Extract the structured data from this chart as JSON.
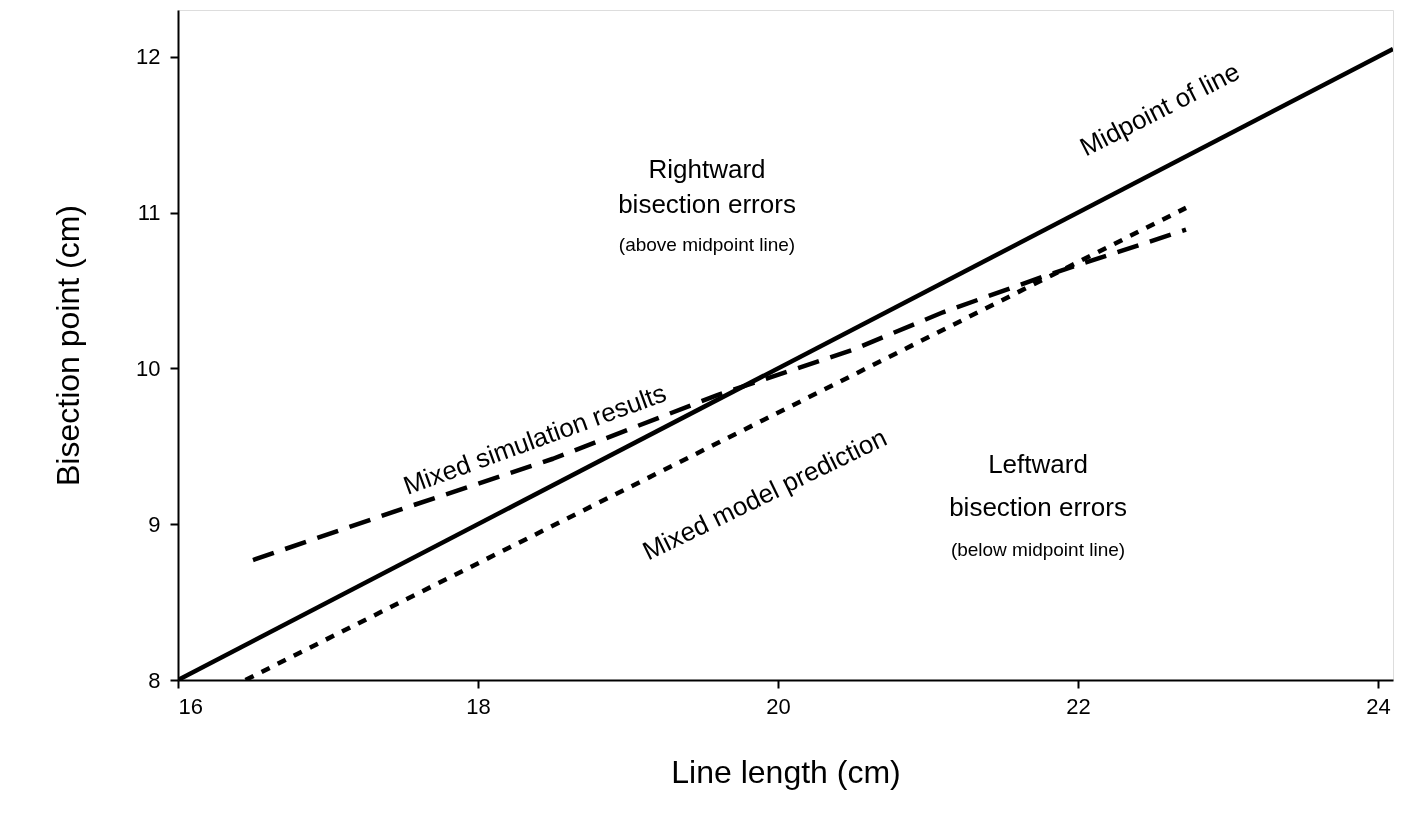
{
  "chart_data": {
    "type": "line",
    "xlabel": "Line length (cm)",
    "ylabel": "Bisection point (cm)",
    "xlim": [
      16,
      24.1
    ],
    "ylim": [
      8,
      12.3
    ],
    "xticks": [
      16,
      18,
      20,
      22,
      24
    ],
    "yticks": [
      8,
      9,
      10,
      11,
      12
    ],
    "grid": false,
    "series": [
      {
        "color": "#000000",
        "line_style": "solid",
        "x": [
          16,
          24.1
        ],
        "values": [
          8,
          12.05
        ]
      },
      {
        "color": "#000000",
        "line_style": "dashed",
        "x": [
          16.5,
          17.5,
          18.5,
          19.6,
          20.5,
          21.1,
          21.8,
          22.72
        ],
        "values": [
          8.77,
          9.1,
          9.42,
          9.83,
          10.12,
          10.36,
          10.6,
          10.89
        ]
      },
      {
        "color": "#000000",
        "line_style": "dotted",
        "x": [
          16.45,
          22.72
        ],
        "values": [
          8.0,
          11.03
        ]
      }
    ],
    "annotations": [
      "Midpoint of line",
      "Mixed simulation results",
      "Mixed model prediction",
      "Rightward",
      "bisection errors",
      "(above midpoint line)",
      "Leftward",
      "bisection errors",
      "(below midpoint line)"
    ]
  }
}
